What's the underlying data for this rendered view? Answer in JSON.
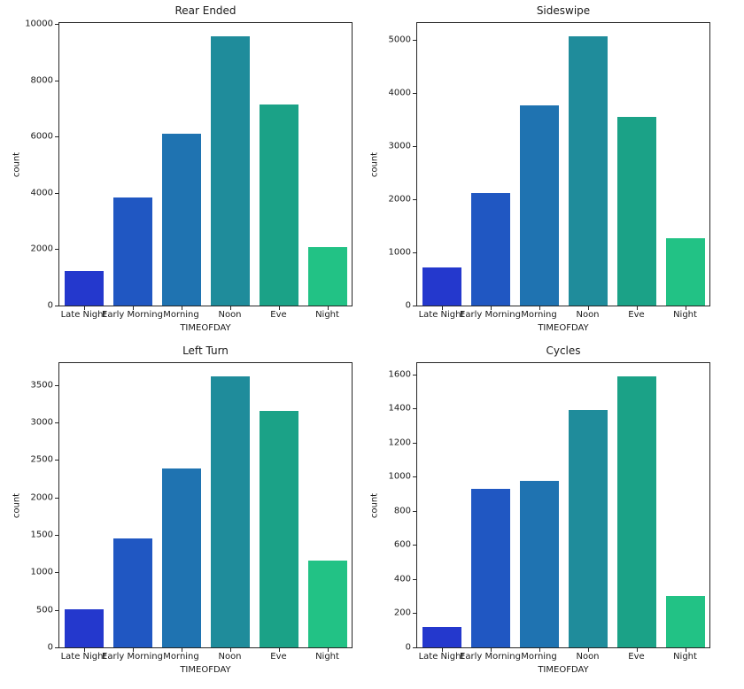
{
  "figure": {
    "background": "#ffffff",
    "text_color": "#1a1a1a",
    "layout": "2x2 subplot grid"
  },
  "palette": {
    "bar_colors": [
      "#2438cd",
      "#2057c2",
      "#1f73b1",
      "#1f8c9b",
      "#1ba287",
      "#22c285"
    ],
    "spine_color": "#262626"
  },
  "chart_data": [
    {
      "type": "bar",
      "title": "Rear Ended",
      "xlabel": "TIMEOFDAY",
      "ylabel": "count",
      "categories": [
        "Late Night",
        "Early Morning",
        "Morning",
        "Noon",
        "Eve",
        "Night"
      ],
      "values": [
        1220,
        3855,
        6115,
        9560,
        7155,
        2090
      ],
      "yticks": [
        0,
        2000,
        4000,
        6000,
        8000,
        10000
      ],
      "ylim": [
        0,
        10040
      ],
      "grid": false,
      "legend": "none"
    },
    {
      "type": "bar",
      "title": "Sideswipe",
      "xlabel": "TIMEOFDAY",
      "ylabel": "count",
      "categories": [
        "Late Night",
        "Early Morning",
        "Morning",
        "Noon",
        "Eve",
        "Night"
      ],
      "values": [
        715,
        2125,
        3780,
        5070,
        3550,
        1270
      ],
      "yticks": [
        0,
        1000,
        2000,
        3000,
        4000,
        5000
      ],
      "ylim": [
        0,
        5325
      ],
      "grid": false,
      "legend": "none"
    },
    {
      "type": "bar",
      "title": "Left Turn",
      "xlabel": "TIMEOFDAY",
      "ylabel": "count",
      "categories": [
        "Late Night",
        "Early Morning",
        "Morning",
        "Noon",
        "Eve",
        "Night"
      ],
      "values": [
        510,
        1450,
        2390,
        3610,
        3155,
        1155
      ],
      "yticks": [
        0,
        500,
        1000,
        1500,
        2000,
        2500,
        3000,
        3500
      ],
      "ylim": [
        0,
        3790
      ],
      "grid": false,
      "legend": "none"
    },
    {
      "type": "bar",
      "title": "Cycles",
      "xlabel": "TIMEOFDAY",
      "ylabel": "count",
      "categories": [
        "Late Night",
        "Early Morning",
        "Morning",
        "Noon",
        "Eve",
        "Night"
      ],
      "values": [
        120,
        930,
        975,
        1390,
        1585,
        300
      ],
      "yticks": [
        0,
        200,
        400,
        600,
        800,
        1000,
        1200,
        1400,
        1600
      ],
      "ylim": [
        0,
        1665
      ],
      "grid": false,
      "legend": "none"
    }
  ]
}
